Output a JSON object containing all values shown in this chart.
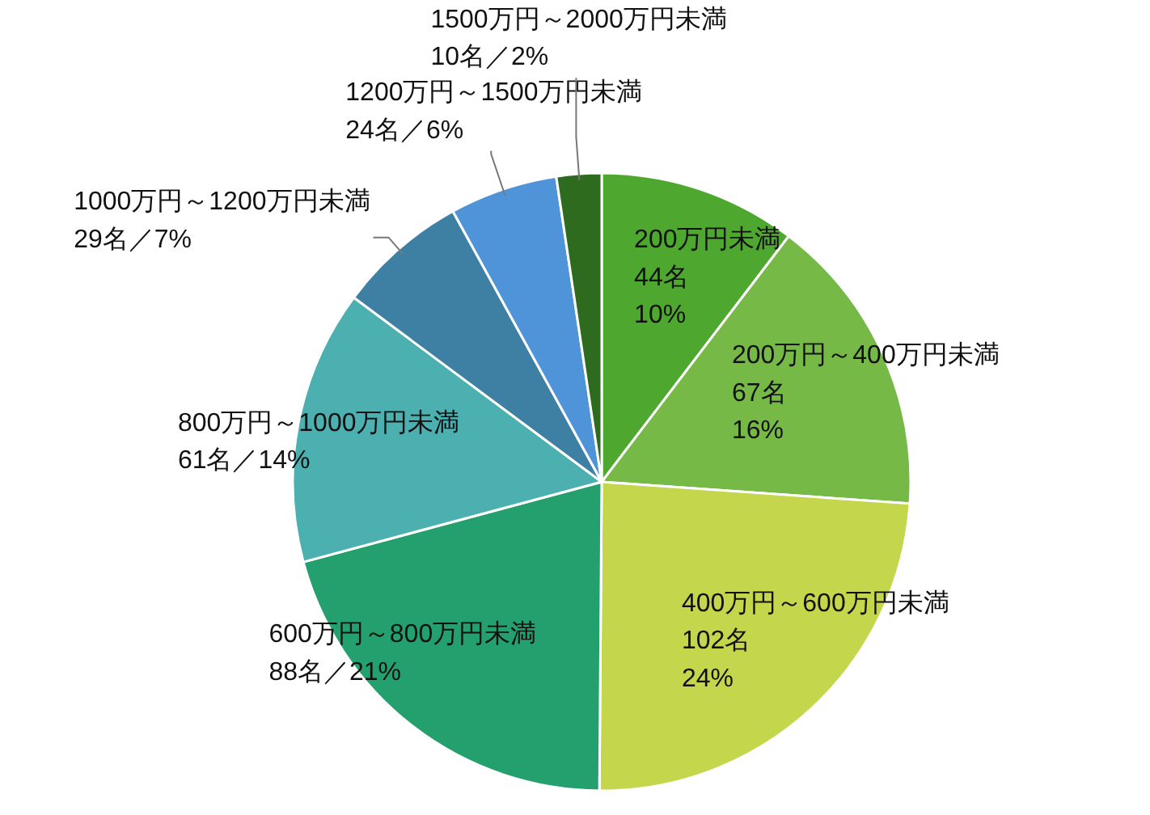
{
  "chart_data": {
    "type": "pie",
    "categories": [
      "200万円未満",
      "200万円～400万円未満",
      "400万円～600万円未満",
      "600万円～800万円未満",
      "800万円～1000万円未満",
      "1000万円～1200万円未満",
      "1200万円～1500万円未満",
      "1500万円～2000万円未満"
    ],
    "values": [
      44,
      67,
      102,
      88,
      61,
      29,
      24,
      10
    ],
    "colors": [
      "#4ea72e",
      "#76b947",
      "#c4d64b",
      "#23a06e",
      "#4cb0b0",
      "#3e80a4",
      "#4f93d9",
      "#2e6b1f"
    ],
    "value_labels": [
      "44名\n10%",
      "67名\n16%",
      "102名\n24%",
      "88名／21%",
      "61名／14%",
      "29名／7%",
      "24名／6%",
      "10名／2%"
    ]
  }
}
